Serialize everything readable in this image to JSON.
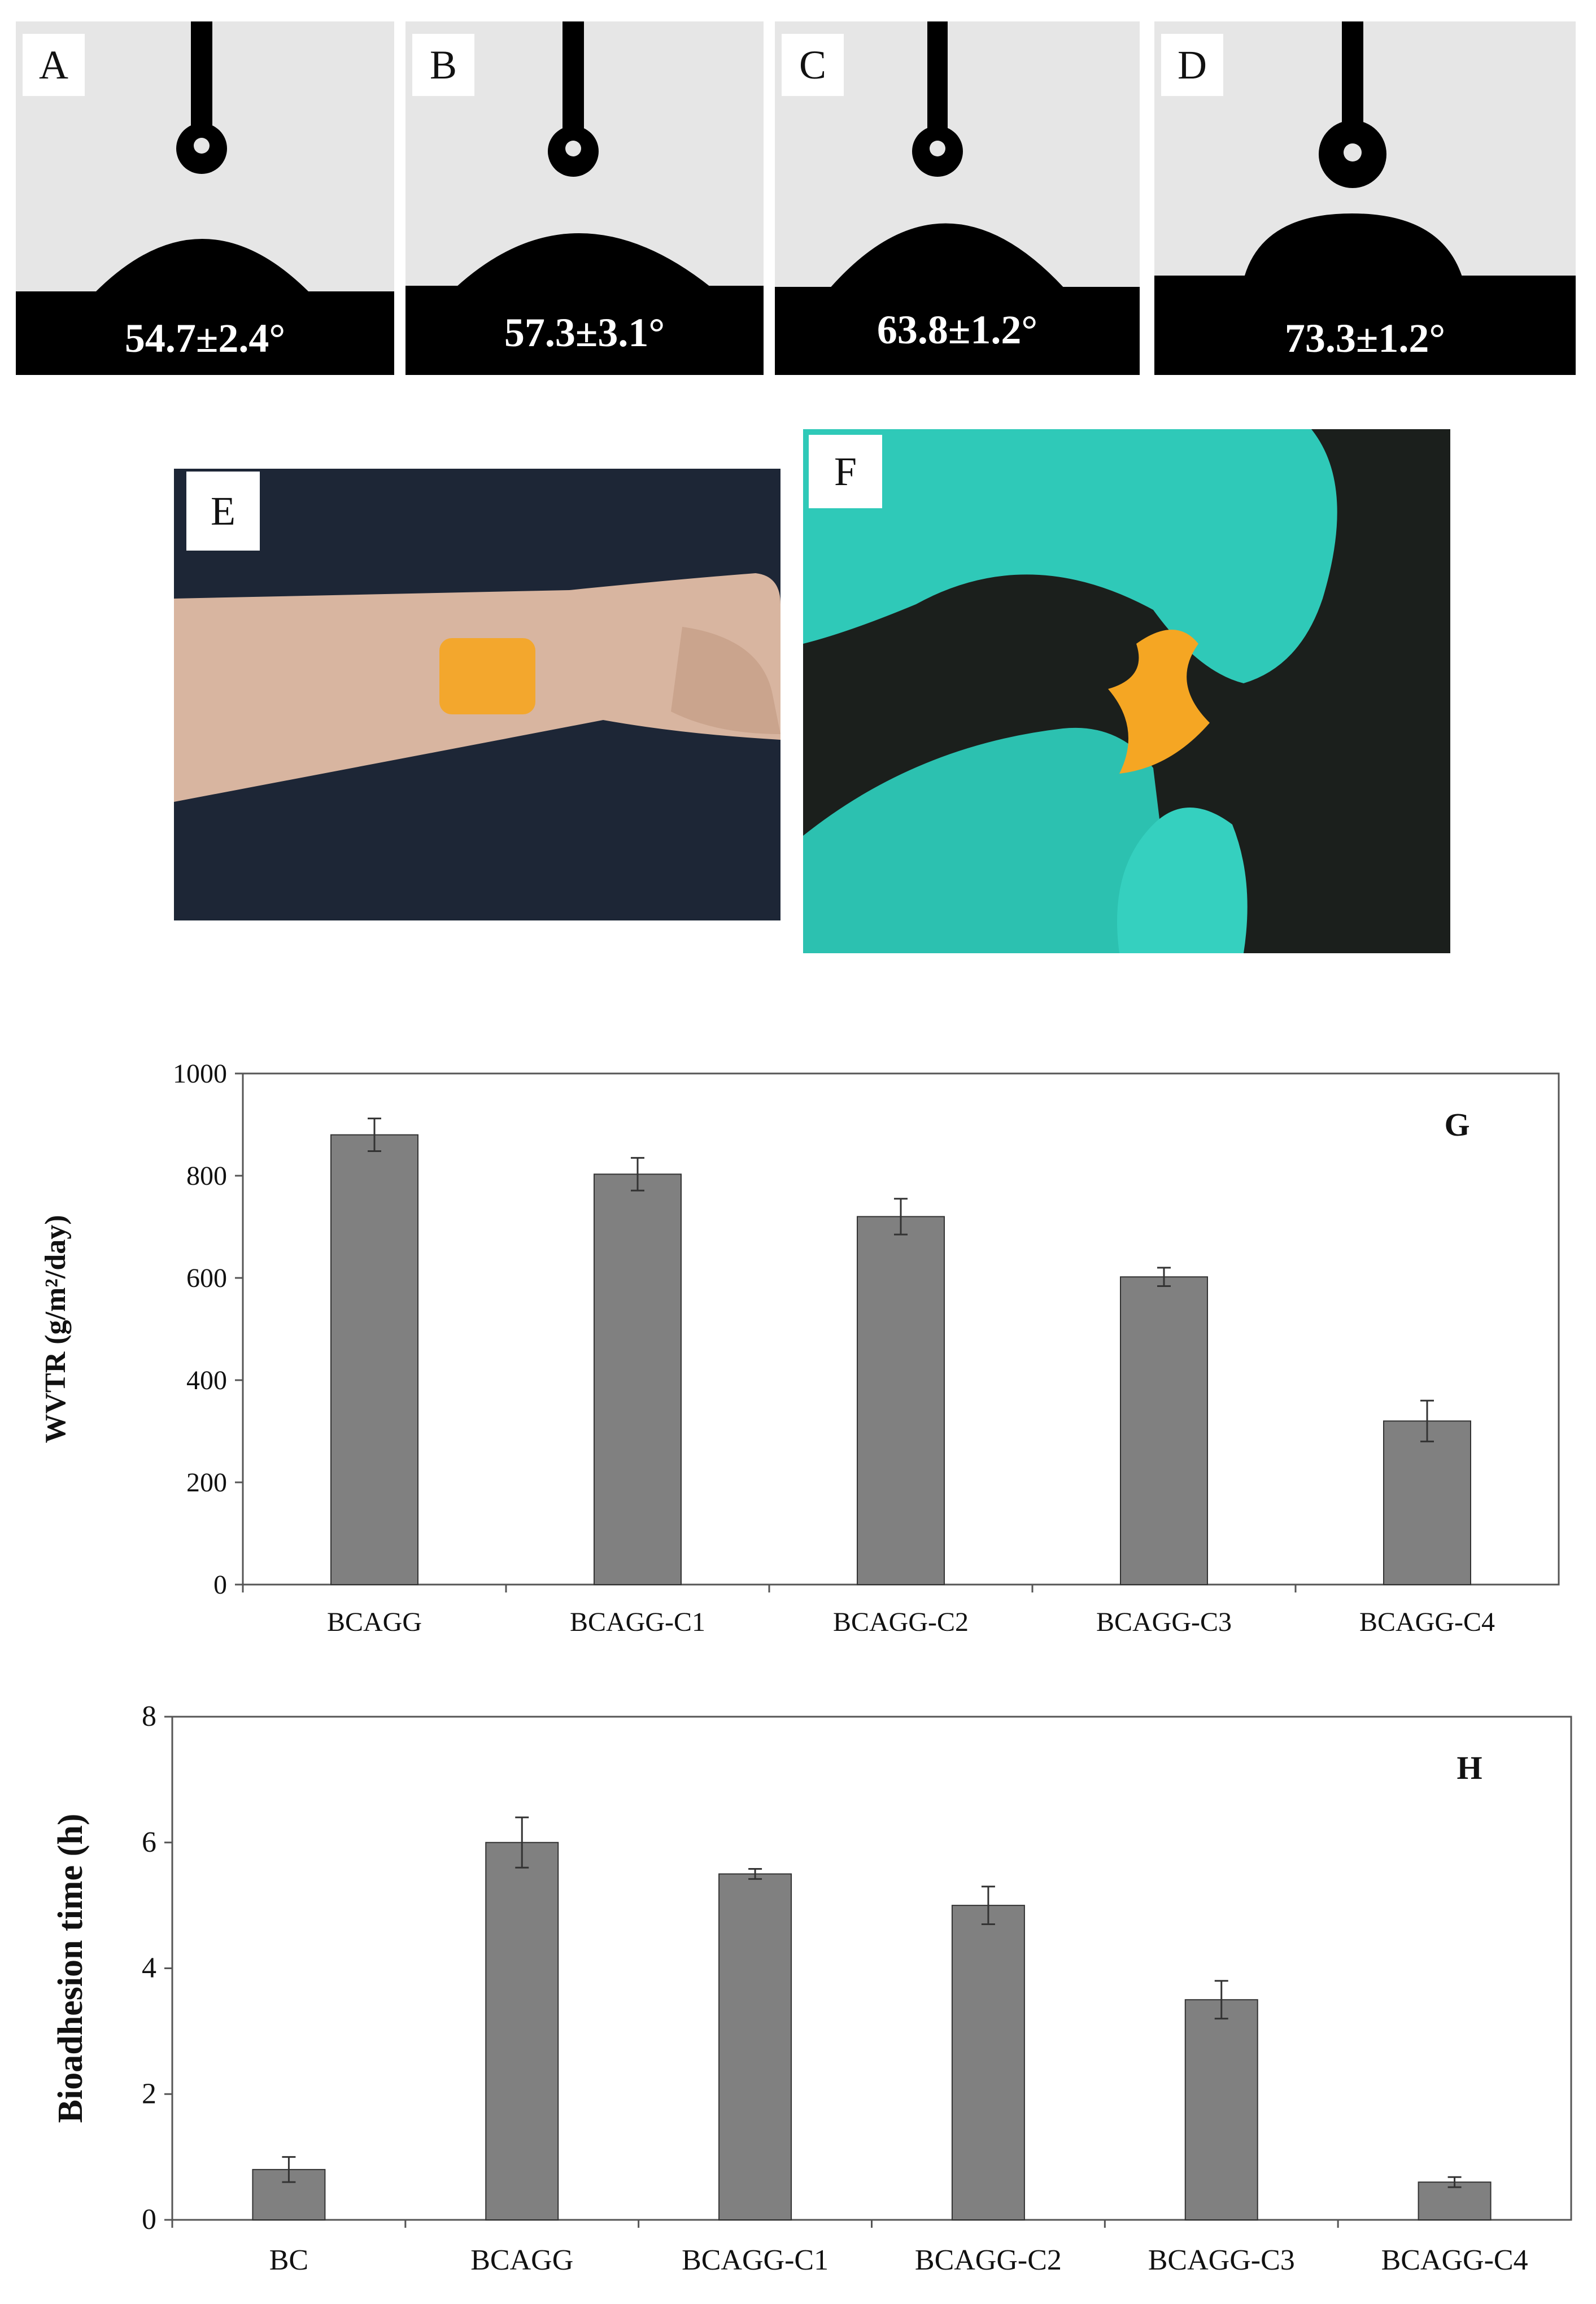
{
  "contact_angles": [
    {
      "label": "A",
      "angle": "54.7±2.4°"
    },
    {
      "label": "B",
      "angle": "57.3±3.1°"
    },
    {
      "label": "C",
      "angle": "63.8±1.2°"
    },
    {
      "label": "D",
      "angle": "73.3±1.2°"
    }
  ],
  "photos": {
    "e_label": "E",
    "f_label": "F"
  },
  "colors": {
    "bar": "#808080",
    "bar_stroke": "#333333",
    "skin": "#d9b7a1",
    "patch": "#f5a623",
    "glove": "#2fc9b8"
  },
  "chart_data": [
    {
      "type": "bar",
      "panel_label": "G",
      "categories": [
        "BCAGG",
        "BCAGG-C1",
        "BCAGG-C2",
        "BCAGG-C3",
        "BCAGG-C4"
      ],
      "values": [
        880,
        803,
        720,
        602,
        320
      ],
      "errors": [
        32,
        32,
        35,
        18,
        40
      ],
      "ylabel": "WVTR (g/m²/day)",
      "ylim": [
        0,
        1000
      ],
      "yticks": [
        "0",
        "200",
        "400",
        "600",
        "800",
        "1000"
      ],
      "grid": false
    },
    {
      "type": "bar",
      "panel_label": "H",
      "categories": [
        "BC",
        "BCAGG",
        "BCAGG-C1",
        "BCAGG-C2",
        "BCAGG-C3",
        "BCAGG-C4"
      ],
      "values": [
        0.8,
        6.0,
        5.5,
        5.0,
        3.5,
        0.6
      ],
      "errors": [
        0.2,
        0.4,
        0.08,
        0.3,
        0.3,
        0.08
      ],
      "ylabel": "Bioadhesion time (h)",
      "ylim": [
        0,
        8
      ],
      "yticks": [
        "0",
        "2",
        "4",
        "6",
        "8"
      ],
      "grid": false
    }
  ]
}
